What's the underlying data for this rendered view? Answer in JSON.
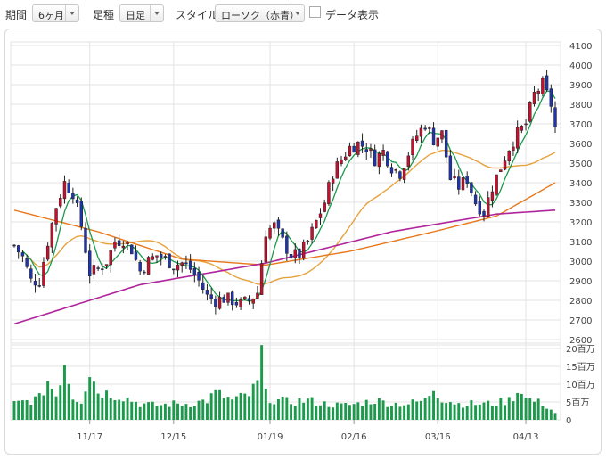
{
  "toolbar": {
    "period_label": "期間",
    "period_value": "6ヶ月",
    "interval_label": "足種",
    "interval_value": "日足",
    "style_label": "スタイル",
    "style_value": "ローソク（赤青）",
    "data_toggle_label": "データ表示"
  },
  "chart_data": {
    "type": "candlestick",
    "price_axis": {
      "ylim": [
        2600,
        4100
      ],
      "ticks": [
        2600,
        2700,
        2800,
        2900,
        3000,
        3100,
        3200,
        3300,
        3400,
        3500,
        3600,
        3700,
        3800,
        3900,
        4000,
        4100
      ],
      "position": "right"
    },
    "volume_axis": {
      "ylim": [
        0,
        20
      ],
      "ticks": [
        "0",
        "5百万",
        "10百万",
        "15百万",
        "20百万"
      ],
      "position": "right"
    },
    "x_tick_labels": [
      {
        "label": "11/17",
        "index": 18
      },
      {
        "label": "12/15",
        "index": 38
      },
      {
        "label": "01/19",
        "index": 61
      },
      {
        "label": "02/16",
        "index": 81
      },
      {
        "label": "03/16",
        "index": 101
      },
      {
        "label": "04/13",
        "index": 122
      }
    ],
    "candle_count": 130,
    "price_keypoints": [
      [
        0,
        3080
      ],
      [
        2,
        3020
      ],
      [
        4,
        2900
      ],
      [
        6,
        2900
      ],
      [
        8,
        3100
      ],
      [
        10,
        3280
      ],
      [
        12,
        3400
      ],
      [
        14,
        3350
      ],
      [
        16,
        3180
      ],
      [
        18,
        2940
      ],
      [
        20,
        2960
      ],
      [
        22,
        3000
      ],
      [
        24,
        3100
      ],
      [
        26,
        3110
      ],
      [
        28,
        3060
      ],
      [
        30,
        2950
      ],
      [
        32,
        3000
      ],
      [
        34,
        3030
      ],
      [
        36,
        3010
      ],
      [
        38,
        2980
      ],
      [
        40,
        2990
      ],
      [
        42,
        2960
      ],
      [
        44,
        2900
      ],
      [
        46,
        2820
      ],
      [
        48,
        2800
      ],
      [
        50,
        2810
      ],
      [
        52,
        2800
      ],
      [
        54,
        2780
      ],
      [
        56,
        2800
      ],
      [
        58,
        2840
      ],
      [
        60,
        3150
      ],
      [
        62,
        3180
      ],
      [
        64,
        3100
      ],
      [
        66,
        3030
      ],
      [
        68,
        3030
      ],
      [
        70,
        3100
      ],
      [
        72,
        3200
      ],
      [
        74,
        3300
      ],
      [
        76,
        3450
      ],
      [
        78,
        3520
      ],
      [
        80,
        3580
      ],
      [
        82,
        3600
      ],
      [
        84,
        3580
      ],
      [
        86,
        3520
      ],
      [
        88,
        3560
      ],
      [
        90,
        3480
      ],
      [
        92,
        3450
      ],
      [
        94,
        3550
      ],
      [
        96,
        3640
      ],
      [
        98,
        3700
      ],
      [
        100,
        3620
      ],
      [
        102,
        3650
      ],
      [
        104,
        3420
      ],
      [
        106,
        3380
      ],
      [
        108,
        3420
      ],
      [
        110,
        3300
      ],
      [
        112,
        3250
      ],
      [
        114,
        3380
      ],
      [
        116,
        3480
      ],
      [
        118,
        3580
      ],
      [
        120,
        3650
      ],
      [
        122,
        3700
      ],
      [
        124,
        3850
      ],
      [
        126,
        3900
      ],
      [
        128,
        3800
      ],
      [
        129,
        3680
      ]
    ],
    "volume_keypoints": [
      [
        0,
        4.5
      ],
      [
        6,
        6.0
      ],
      [
        8,
        11.0
      ],
      [
        10,
        7.0
      ],
      [
        12,
        16.5
      ],
      [
        14,
        6.5
      ],
      [
        16,
        5.5
      ],
      [
        18,
        13.5
      ],
      [
        20,
        8.0
      ],
      [
        22,
        7.5
      ],
      [
        26,
        6.5
      ],
      [
        30,
        4.5
      ],
      [
        34,
        4.0
      ],
      [
        38,
        4.5
      ],
      [
        42,
        4.5
      ],
      [
        46,
        5.5
      ],
      [
        48,
        7.5
      ],
      [
        52,
        5.5
      ],
      [
        56,
        7.0
      ],
      [
        58,
        10.0
      ],
      [
        59,
        19.0
      ],
      [
        60,
        7.0
      ],
      [
        62,
        5.5
      ],
      [
        66,
        5.0
      ],
      [
        70,
        5.5
      ],
      [
        74,
        4.5
      ],
      [
        78,
        4.0
      ],
      [
        82,
        4.5
      ],
      [
        86,
        5.5
      ],
      [
        90,
        4.5
      ],
      [
        94,
        4.5
      ],
      [
        98,
        5.5
      ],
      [
        100,
        9.0
      ],
      [
        102,
        6.0
      ],
      [
        106,
        4.5
      ],
      [
        110,
        4.5
      ],
      [
        114,
        4.5
      ],
      [
        118,
        5.5
      ],
      [
        121,
        9.0
      ],
      [
        122,
        6.0
      ],
      [
        126,
        4.5
      ],
      [
        129,
        2.0
      ]
    ],
    "moving_averages": [
      {
        "period": 5,
        "color": "#1a9a4a"
      },
      {
        "period": 25,
        "color": "#e6a23c"
      },
      {
        "period": 75,
        "color": "#e8771a"
      },
      {
        "period": 200,
        "color": "#b0249c"
      }
    ],
    "long_ma_endpoints": {
      "ma75": [
        [
          0,
          3260
        ],
        [
          20,
          3150
        ],
        [
          40,
          3010
        ],
        [
          60,
          2980
        ],
        [
          80,
          3050
        ],
        [
          100,
          3150
        ],
        [
          115,
          3230
        ],
        [
          129,
          3400
        ]
      ],
      "ma200": [
        [
          0,
          2680
        ],
        [
          30,
          2880
        ],
        [
          60,
          2990
        ],
        [
          90,
          3150
        ],
        [
          115,
          3240
        ],
        [
          129,
          3260
        ]
      ]
    },
    "up_color": "#c8102e",
    "down_color": "#1f35b0",
    "volume_color": "#1a9a4a",
    "grid": true
  }
}
